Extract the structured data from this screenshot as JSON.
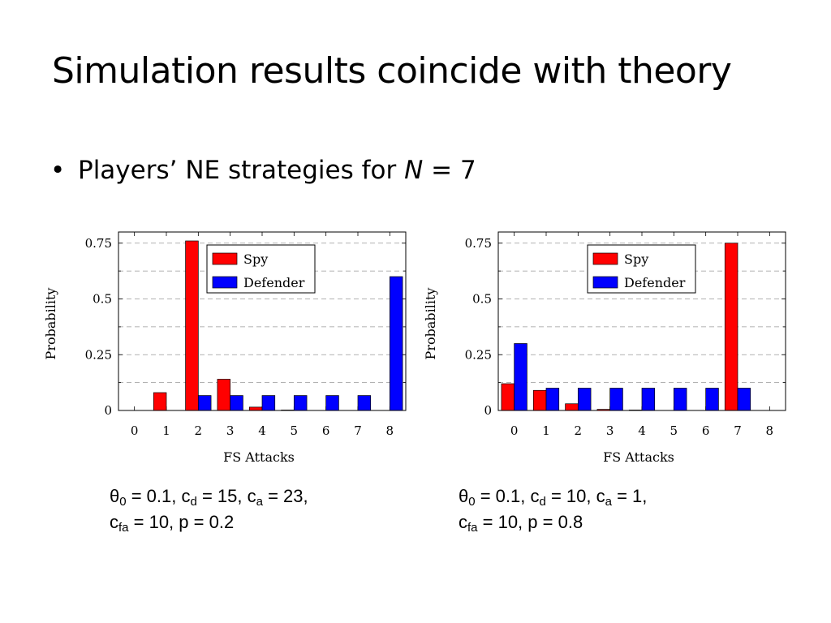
{
  "slide": {
    "title": "Simulation results coincide with theory",
    "bullet": {
      "marker": "•",
      "text": "Players’ NE strategies for ",
      "variable": "N",
      "equals": " = 7"
    }
  },
  "chart_data": [
    {
      "type": "bar",
      "xlabel": "FS Attacks",
      "ylabel": "Probability",
      "x": [
        0,
        1,
        2,
        3,
        4,
        5,
        6,
        7,
        8
      ],
      "xlim": [
        -0.5,
        8.5
      ],
      "ylim": [
        0,
        0.8
      ],
      "yticks": [
        0,
        0.25,
        0.5,
        0.75
      ],
      "ytick_labels": [
        "0",
        "0.25",
        "0.5",
        "0.75"
      ],
      "grid": "horizontal-dashed",
      "legend_position": "top-center",
      "series": [
        {
          "name": "Spy",
          "color": "#ff0000",
          "values": [
            0,
            0.08,
            0.76,
            0.14,
            0.015,
            0.002,
            0,
            0,
            0
          ]
        },
        {
          "name": "Defender",
          "color": "#0000ff",
          "values": [
            0,
            0,
            0.067,
            0.067,
            0.067,
            0.067,
            0.067,
            0.067,
            0.6
          ]
        }
      ]
    },
    {
      "type": "bar",
      "xlabel": "FS Attacks",
      "ylabel": "Probability",
      "x": [
        0,
        1,
        2,
        3,
        4,
        5,
        6,
        7,
        8
      ],
      "xlim": [
        -0.5,
        8.5
      ],
      "ylim": [
        0,
        0.8
      ],
      "yticks": [
        0,
        0.25,
        0.5,
        0.75
      ],
      "ytick_labels": [
        "0",
        "0.25",
        "0.5",
        "0.75"
      ],
      "grid": "horizontal-dashed",
      "legend_position": "top-right",
      "series": [
        {
          "name": "Spy",
          "color": "#ff0000",
          "values": [
            0.12,
            0.09,
            0.03,
            0.005,
            0.002,
            0,
            0,
            0.75,
            0
          ]
        },
        {
          "name": "Defender",
          "color": "#0000ff",
          "values": [
            0.3,
            0.1,
            0.1,
            0.1,
            0.1,
            0.1,
            0.1,
            0.1,
            0
          ]
        }
      ]
    }
  ],
  "captions": [
    {
      "line1": {
        "theta": "θ",
        "theta_sub": "0",
        "part_a": " = 0.1, c",
        "d_sub": "d",
        "part_b": " = 15, c",
        "a_sub": "a",
        "part_c": " = 23,"
      },
      "line2": {
        "c": "c",
        "fa_sub": "fa",
        "rest": " = 10, p = 0.2"
      }
    },
    {
      "line1": {
        "theta": "θ",
        "theta_sub": "0",
        "part_a": " = 0.1, c",
        "d_sub": "d",
        "part_b": " = 10, c",
        "a_sub": "a",
        "part_c": " = 1,"
      },
      "line2": {
        "c": "c",
        "fa_sub": "fa",
        "rest": " = 10, p = 0.8"
      }
    }
  ]
}
